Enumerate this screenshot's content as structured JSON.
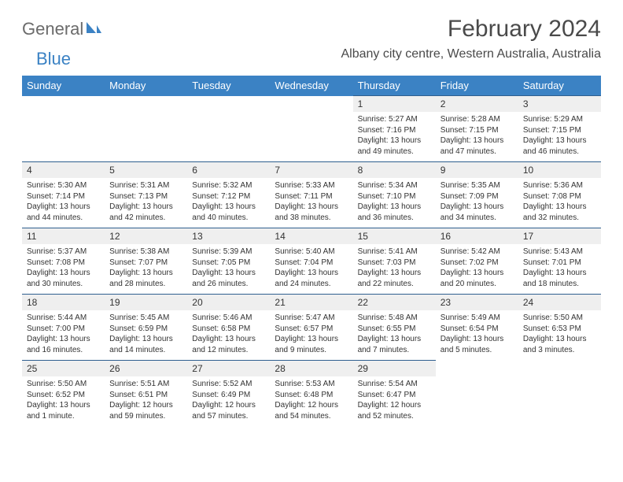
{
  "logo": {
    "text1": "General",
    "text2": "Blue",
    "sail_color": "#3b82c4"
  },
  "title": "February 2024",
  "subtitle": "Albany city centre, Western Australia, Australia",
  "colors": {
    "header_bg": "#3b82c4",
    "header_text": "#ffffff",
    "date_bg": "#efefef",
    "date_border": "#2f5f8f",
    "text": "#333333",
    "logo_gray": "#6b6b6b",
    "logo_blue": "#3b82c4"
  },
  "day_names": [
    "Sunday",
    "Monday",
    "Tuesday",
    "Wednesday",
    "Thursday",
    "Friday",
    "Saturday"
  ],
  "first_weekday": 4,
  "days": [
    {
      "n": "1",
      "sr": "5:27 AM",
      "ss": "7:16 PM",
      "dl": "13 hours and 49 minutes."
    },
    {
      "n": "2",
      "sr": "5:28 AM",
      "ss": "7:15 PM",
      "dl": "13 hours and 47 minutes."
    },
    {
      "n": "3",
      "sr": "5:29 AM",
      "ss": "7:15 PM",
      "dl": "13 hours and 46 minutes."
    },
    {
      "n": "4",
      "sr": "5:30 AM",
      "ss": "7:14 PM",
      "dl": "13 hours and 44 minutes."
    },
    {
      "n": "5",
      "sr": "5:31 AM",
      "ss": "7:13 PM",
      "dl": "13 hours and 42 minutes."
    },
    {
      "n": "6",
      "sr": "5:32 AM",
      "ss": "7:12 PM",
      "dl": "13 hours and 40 minutes."
    },
    {
      "n": "7",
      "sr": "5:33 AM",
      "ss": "7:11 PM",
      "dl": "13 hours and 38 minutes."
    },
    {
      "n": "8",
      "sr": "5:34 AM",
      "ss": "7:10 PM",
      "dl": "13 hours and 36 minutes."
    },
    {
      "n": "9",
      "sr": "5:35 AM",
      "ss": "7:09 PM",
      "dl": "13 hours and 34 minutes."
    },
    {
      "n": "10",
      "sr": "5:36 AM",
      "ss": "7:08 PM",
      "dl": "13 hours and 32 minutes."
    },
    {
      "n": "11",
      "sr": "5:37 AM",
      "ss": "7:08 PM",
      "dl": "13 hours and 30 minutes."
    },
    {
      "n": "12",
      "sr": "5:38 AM",
      "ss": "7:07 PM",
      "dl": "13 hours and 28 minutes."
    },
    {
      "n": "13",
      "sr": "5:39 AM",
      "ss": "7:05 PM",
      "dl": "13 hours and 26 minutes."
    },
    {
      "n": "14",
      "sr": "5:40 AM",
      "ss": "7:04 PM",
      "dl": "13 hours and 24 minutes."
    },
    {
      "n": "15",
      "sr": "5:41 AM",
      "ss": "7:03 PM",
      "dl": "13 hours and 22 minutes."
    },
    {
      "n": "16",
      "sr": "5:42 AM",
      "ss": "7:02 PM",
      "dl": "13 hours and 20 minutes."
    },
    {
      "n": "17",
      "sr": "5:43 AM",
      "ss": "7:01 PM",
      "dl": "13 hours and 18 minutes."
    },
    {
      "n": "18",
      "sr": "5:44 AM",
      "ss": "7:00 PM",
      "dl": "13 hours and 16 minutes."
    },
    {
      "n": "19",
      "sr": "5:45 AM",
      "ss": "6:59 PM",
      "dl": "13 hours and 14 minutes."
    },
    {
      "n": "20",
      "sr": "5:46 AM",
      "ss": "6:58 PM",
      "dl": "13 hours and 12 minutes."
    },
    {
      "n": "21",
      "sr": "5:47 AM",
      "ss": "6:57 PM",
      "dl": "13 hours and 9 minutes."
    },
    {
      "n": "22",
      "sr": "5:48 AM",
      "ss": "6:55 PM",
      "dl": "13 hours and 7 minutes."
    },
    {
      "n": "23",
      "sr": "5:49 AM",
      "ss": "6:54 PM",
      "dl": "13 hours and 5 minutes."
    },
    {
      "n": "24",
      "sr": "5:50 AM",
      "ss": "6:53 PM",
      "dl": "13 hours and 3 minutes."
    },
    {
      "n": "25",
      "sr": "5:50 AM",
      "ss": "6:52 PM",
      "dl": "13 hours and 1 minute."
    },
    {
      "n": "26",
      "sr": "5:51 AM",
      "ss": "6:51 PM",
      "dl": "12 hours and 59 minutes."
    },
    {
      "n": "27",
      "sr": "5:52 AM",
      "ss": "6:49 PM",
      "dl": "12 hours and 57 minutes."
    },
    {
      "n": "28",
      "sr": "5:53 AM",
      "ss": "6:48 PM",
      "dl": "12 hours and 54 minutes."
    },
    {
      "n": "29",
      "sr": "5:54 AM",
      "ss": "6:47 PM",
      "dl": "12 hours and 52 minutes."
    }
  ],
  "labels": {
    "sunrise": "Sunrise:",
    "sunset": "Sunset:",
    "daylight": "Daylight:"
  }
}
